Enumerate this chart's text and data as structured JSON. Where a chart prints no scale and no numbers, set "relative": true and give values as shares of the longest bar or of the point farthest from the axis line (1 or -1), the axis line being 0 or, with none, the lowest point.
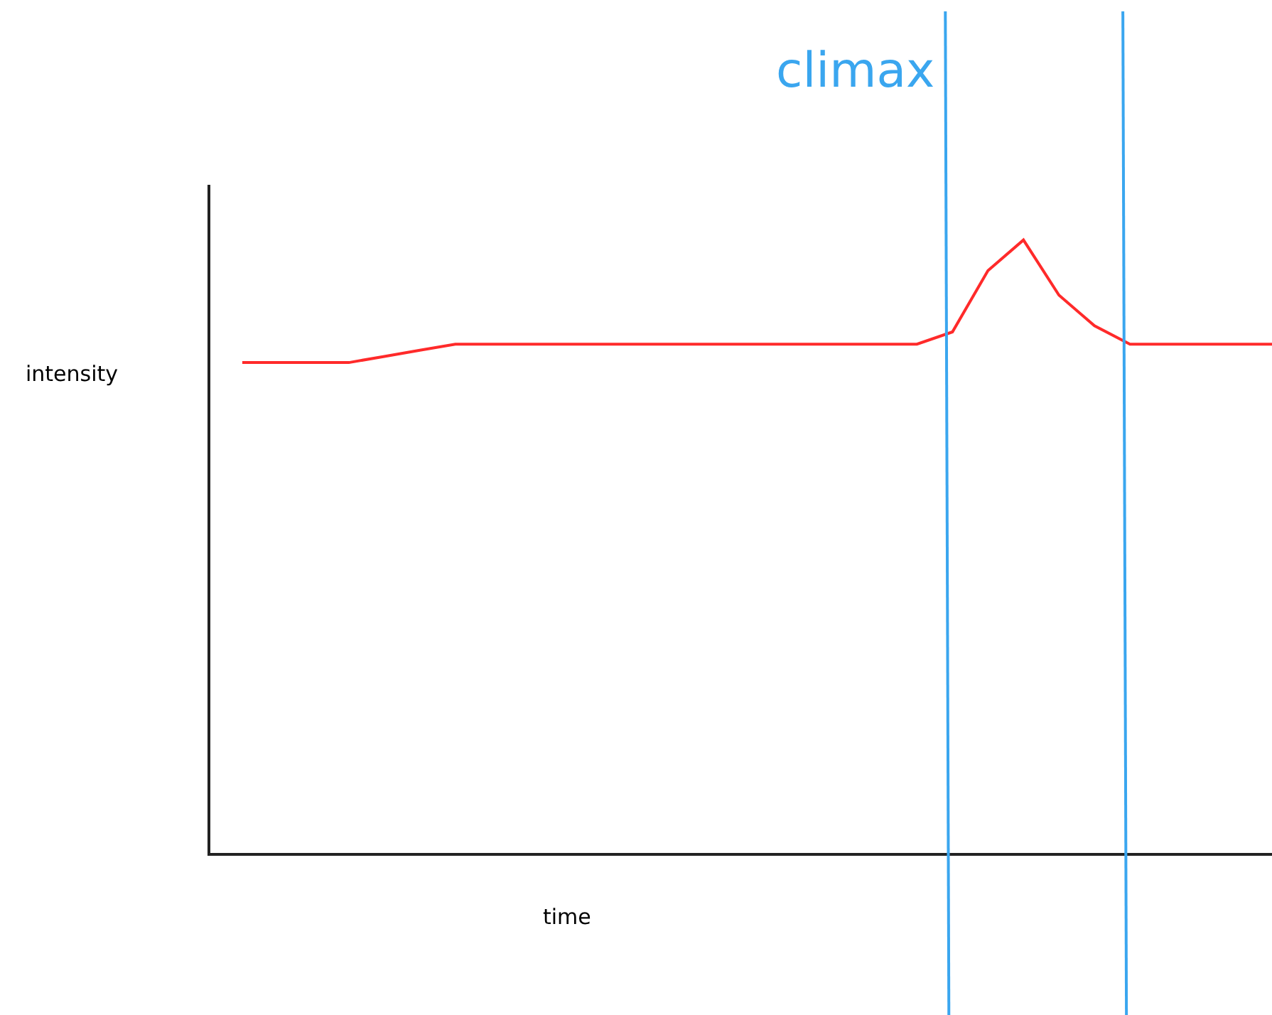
{
  "chart_data": {
    "type": "line",
    "relative": true,
    "xlabel": "time",
    "ylabel": "intensity",
    "categories": [
      null,
      null,
      null,
      null,
      null,
      null,
      null,
      null,
      null,
      null,
      null,
      null,
      null,
      null,
      null,
      null,
      null,
      null,
      null,
      null,
      null,
      null,
      null,
      null,
      null,
      null,
      null,
      null,
      null,
      null
    ],
    "series": [
      {
        "color": "#ff2a2a",
        "values": [
          0.8,
          0.8,
          0.8,
          0.8,
          0.81,
          0.82,
          0.83,
          0.83,
          0.83,
          0.83,
          0.83,
          0.83,
          0.83,
          0.83,
          0.83,
          0.83,
          0.83,
          0.83,
          0.83,
          0.83,
          0.85,
          0.95,
          1,
          0.91,
          0.86,
          0.83,
          0.83,
          0.83,
          0.83,
          0.83
        ]
      }
    ],
    "annotations": [
      "climax"
    ],
    "marker": "none",
    "line_style": "solid"
  }
}
